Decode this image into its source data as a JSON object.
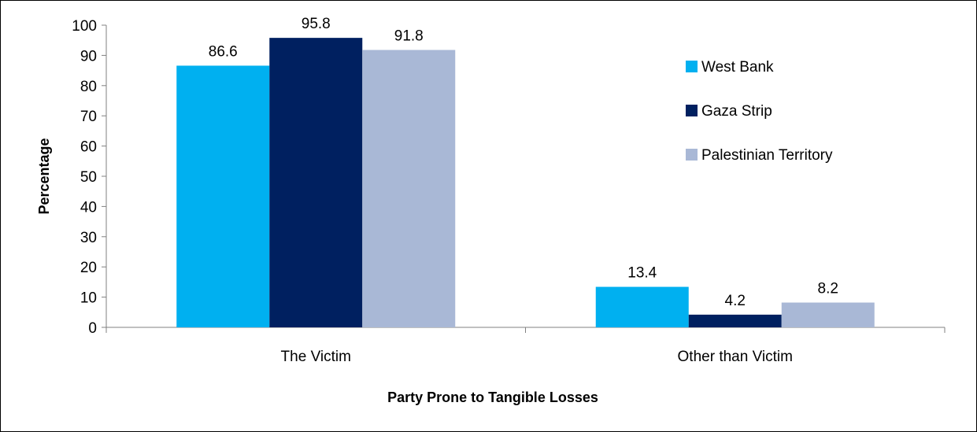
{
  "chart_data": {
    "type": "bar",
    "title": "",
    "xlabel": "Party Prone to Tangible Losses",
    "ylabel": "Percentage",
    "categories": [
      "The Victim",
      "Other than Victim"
    ],
    "series": [
      {
        "name": "West Bank",
        "values": [
          86.6,
          13.4
        ],
        "color": "#00B0F0"
      },
      {
        "name": "Gaza Strip",
        "values": [
          95.8,
          4.2
        ],
        "color": "#002060"
      },
      {
        "name": "Palestinian Territory",
        "values": [
          91.8,
          8.2
        ],
        "color": "#A9B8D6"
      }
    ],
    "ylim": [
      0,
      100
    ],
    "yticks": [
      0,
      10,
      20,
      30,
      40,
      50,
      60,
      70,
      80,
      90,
      100
    ],
    "grid": false,
    "legend_position": "right"
  }
}
